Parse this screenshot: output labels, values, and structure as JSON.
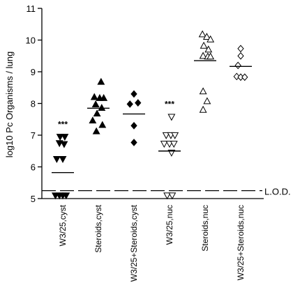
{
  "chart_data": {
    "type": "scatter",
    "title": "",
    "xlabel": "",
    "ylabel": "log10 Pc Organisms / lung",
    "ylim": [
      5,
      11
    ],
    "yticks": [
      "5",
      "6",
      "7",
      "8",
      "9",
      "10",
      "11"
    ],
    "grid": false,
    "legend": "none",
    "categories": [
      "W3/25,cyst",
      "Steroids,cyst",
      "W3/25+Steroids,cyst",
      "W3/25,nuc",
      "Steroids,nuc",
      "W3/25+Steroids,nuc"
    ],
    "series": [
      {
        "marker": "triangle-down",
        "filled": true,
        "points": [
          [
            -0.18,
            6.25
          ],
          [
            0.0,
            6.25
          ],
          [
            -0.08,
            6.95
          ],
          [
            0.06,
            6.95
          ],
          [
            -0.1,
            6.75
          ],
          [
            0.04,
            6.72
          ],
          [
            -0.22,
            5.1
          ],
          [
            -0.1,
            5.1
          ],
          [
            0.0,
            5.1
          ],
          [
            0.1,
            5.1
          ]
        ],
        "mean": 5.82,
        "annotation": "***"
      },
      {
        "marker": "triangle-up",
        "filled": true,
        "points": [
          [
            0.08,
            8.68
          ],
          [
            -0.12,
            8.2
          ],
          [
            0.04,
            8.17
          ],
          [
            0.16,
            8.17
          ],
          [
            -0.08,
            7.97
          ],
          [
            0.1,
            7.86
          ],
          [
            -0.04,
            7.68
          ],
          [
            -0.17,
            7.46
          ],
          [
            0.12,
            7.32
          ],
          [
            -0.06,
            7.12
          ]
        ],
        "mean": 7.85
      },
      {
        "marker": "diamond",
        "filled": true,
        "points": [
          [
            0.0,
            8.3
          ],
          [
            0.12,
            8.02
          ],
          [
            -0.12,
            7.98
          ],
          [
            0.0,
            7.3
          ],
          [
            0.0,
            6.77
          ]
        ],
        "mean": 7.67
      },
      {
        "marker": "triangle-down",
        "filled": false,
        "points": [
          [
            0.06,
            7.58
          ],
          [
            -0.1,
            7.0
          ],
          [
            0.04,
            7.0
          ],
          [
            0.16,
            7.0
          ],
          [
            -0.16,
            6.73
          ],
          [
            0.0,
            6.73
          ],
          [
            0.13,
            6.73
          ],
          [
            0.06,
            6.45
          ],
          [
            -0.07,
            5.1
          ],
          [
            0.08,
            5.1
          ]
        ],
        "mean": 6.5,
        "annotation": "***"
      },
      {
        "marker": "triangle-up",
        "filled": false,
        "points": [
          [
            -0.08,
            10.18
          ],
          [
            0.05,
            10.1
          ],
          [
            0.16,
            10.02
          ],
          [
            -0.04,
            9.82
          ],
          [
            0.1,
            9.7
          ],
          [
            -0.06,
            9.5
          ],
          [
            0.08,
            9.48
          ],
          [
            0.16,
            9.48
          ],
          [
            -0.06,
            8.38
          ],
          [
            0.06,
            8.07
          ],
          [
            -0.06,
            7.8
          ]
        ],
        "mean": 9.35
      },
      {
        "marker": "diamond",
        "filled": false,
        "points": [
          [
            0.0,
            9.73
          ],
          [
            0.0,
            9.5
          ],
          [
            -0.08,
            9.2
          ],
          [
            -0.12,
            8.85
          ],
          [
            0.0,
            8.83
          ],
          [
            0.12,
            8.83
          ]
        ],
        "mean": 9.17
      }
    ],
    "reference_line": {
      "value": 5.25,
      "style": "dashed",
      "label": "L.O.D."
    }
  }
}
